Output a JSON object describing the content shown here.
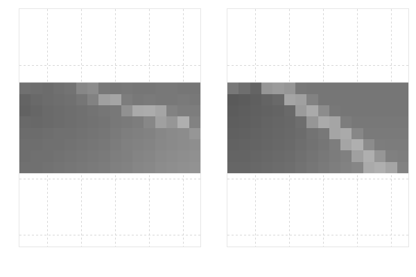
{
  "chart_data": [
    {
      "type": "heatmap",
      "color": "gray",
      "grid": true,
      "tick_labels": false,
      "xlim": [
        -0.5,
        15.5
      ],
      "ylim": [
        14,
        -7
      ],
      "xticks": [
        2,
        5,
        8,
        11,
        14
      ],
      "yticks": [
        -7,
        -2,
        3,
        8,
        13
      ],
      "zlim": [
        0,
        255
      ],
      "cells": [
        [
          112,
          110,
          108,
          112,
          115,
          135,
          140,
          120,
          118,
          120,
          118,
          118,
          120,
          120,
          118,
          118
        ],
        [
          100,
          105,
          108,
          110,
          112,
          118,
          130,
          160,
          165,
          125,
          120,
          122,
          120,
          120,
          122,
          120
        ],
        [
          98,
          102,
          106,
          108,
          110,
          112,
          115,
          118,
          120,
          145,
          170,
          172,
          165,
          130,
          125,
          125
        ],
        [
          105,
          104,
          106,
          108,
          110,
          112,
          114,
          116,
          120,
          122,
          125,
          135,
          160,
          150,
          175,
          130
        ],
        [
          108,
          108,
          110,
          112,
          112,
          114,
          116,
          118,
          122,
          126,
          128,
          130,
          135,
          138,
          140,
          150
        ],
        [
          110,
          110,
          112,
          112,
          114,
          116,
          118,
          120,
          124,
          128,
          130,
          132,
          136,
          138,
          140,
          142
        ],
        [
          110,
          112,
          112,
          114,
          116,
          118,
          120,
          122,
          126,
          128,
          132,
          134,
          138,
          140,
          142,
          144
        ],
        [
          112,
          112,
          114,
          116,
          118,
          120,
          122,
          124,
          128,
          130,
          134,
          136,
          140,
          142,
          144,
          146
        ]
      ]
    },
    {
      "type": "heatmap",
      "color": "gray",
      "grid": true,
      "tick_labels": false,
      "xlim": [
        -0.5,
        15.5
      ],
      "ylim": [
        14,
        -7
      ],
      "xticks": [
        2,
        5,
        8,
        11,
        14
      ],
      "yticks": [
        -7,
        -2,
        3,
        8,
        13
      ],
      "zlim": [
        0,
        255
      ],
      "cells": [
        [
          120,
          110,
          100,
          150,
          155,
          150,
          120,
          118,
          118,
          118,
          118,
          118,
          118,
          118,
          118,
          118
        ],
        [
          90,
          92,
          95,
          100,
          105,
          165,
          160,
          130,
          118,
          118,
          118,
          118,
          118,
          118,
          118,
          118
        ],
        [
          92,
          94,
          96,
          98,
          100,
          105,
          155,
          170,
          140,
          120,
          118,
          118,
          118,
          118,
          118,
          118
        ],
        [
          94,
          95,
          97,
          100,
          102,
          104,
          110,
          150,
          170,
          165,
          125,
          120,
          120,
          120,
          120,
          120
        ],
        [
          96,
          97,
          99,
          101,
          103,
          105,
          108,
          115,
          120,
          165,
          170,
          135,
          122,
          122,
          122,
          122
        ],
        [
          98,
          99,
          100,
          102,
          104,
          106,
          110,
          114,
          118,
          125,
          165,
          175,
          140,
          125,
          124,
          124
        ],
        [
          100,
          100,
          102,
          104,
          106,
          108,
          112,
          116,
          120,
          124,
          128,
          160,
          175,
          150,
          128,
          126
        ],
        [
          102,
          102,
          104,
          106,
          108,
          110,
          114,
          118,
          122,
          126,
          130,
          134,
          170,
          175,
          165,
          130
        ]
      ]
    }
  ]
}
